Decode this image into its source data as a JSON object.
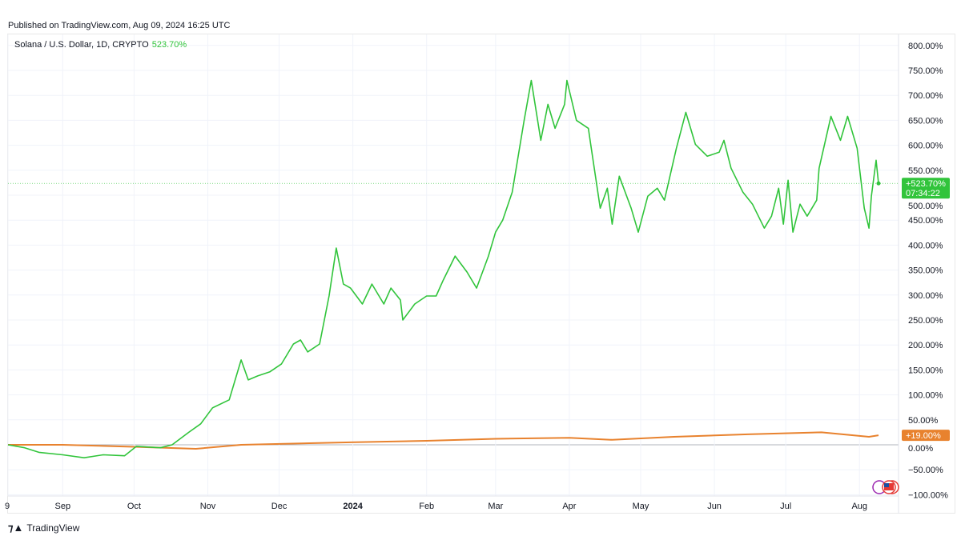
{
  "header": {
    "published": "Published on TradingView.com, Aug 09, 2024 16:25 UTC"
  },
  "legend": {
    "symbol": "Solana / U.S. Dollar, 1D, CRYPTO",
    "value": "523.70%"
  },
  "brand": {
    "name": "TradingView",
    "icon": "tradingview-logo-icon"
  },
  "colors": {
    "solana": "#31c43b",
    "orange": "#e8822e",
    "grid": "#f0f3fa",
    "zero": "#b2b5be"
  },
  "chart_data": {
    "type": "line",
    "ylim": [
      -100,
      800
    ],
    "y_ticks": [
      "800.00%",
      "750.00%",
      "700.00%",
      "650.00%",
      "600.00%",
      "550.00%",
      "500.00%",
      "450.00%",
      "400.00%",
      "350.00%",
      "300.00%",
      "250.00%",
      "200.00%",
      "150.00%",
      "100.00%",
      "50.00%",
      "0.00%",
      "−50.00%",
      "−100.00%"
    ],
    "y_tick_values": [
      800,
      750,
      700,
      650,
      600,
      550,
      500,
      450,
      400,
      350,
      300,
      250,
      200,
      150,
      100,
      50,
      0,
      -50,
      -100
    ],
    "x_range": [
      "2023-08-09",
      "2024-08-09"
    ],
    "x_ticks": [
      {
        "label": "9",
        "date": "2023-08-09"
      },
      {
        "label": "Sep",
        "date": "2023-09-01"
      },
      {
        "label": "Oct",
        "date": "2023-10-01"
      },
      {
        "label": "Nov",
        "date": "2023-11-01"
      },
      {
        "label": "Dec",
        "date": "2023-12-01"
      },
      {
        "label": "2024",
        "date": "2024-01-01",
        "bold": true
      },
      {
        "label": "Feb",
        "date": "2024-02-01"
      },
      {
        "label": "Mar",
        "date": "2024-03-01"
      },
      {
        "label": "Apr",
        "date": "2024-04-01"
      },
      {
        "label": "May",
        "date": "2024-05-01"
      },
      {
        "label": "Jun",
        "date": "2024-06-01"
      },
      {
        "label": "Jul",
        "date": "2024-07-01"
      },
      {
        "label": "Aug",
        "date": "2024-08-01"
      }
    ],
    "grid": true,
    "series": [
      {
        "name": "Solana / U.S. Dollar",
        "color": "#31c43b",
        "last_label": "+523.70%",
        "countdown": "07:34:22",
        "points": [
          [
            "2023-08-09",
            0
          ],
          [
            "2023-08-16",
            -6
          ],
          [
            "2023-08-22",
            -15
          ],
          [
            "2023-09-01",
            -20
          ],
          [
            "2023-09-10",
            -26
          ],
          [
            "2023-09-18",
            -20
          ],
          [
            "2023-09-27",
            -22
          ],
          [
            "2023-10-02",
            -3
          ],
          [
            "2023-10-12",
            -6
          ],
          [
            "2023-10-17",
            0
          ],
          [
            "2023-10-24",
            25
          ],
          [
            "2023-10-29",
            42
          ],
          [
            "2023-11-03",
            74
          ],
          [
            "2023-11-10",
            90
          ],
          [
            "2023-11-15",
            170
          ],
          [
            "2023-11-18",
            130
          ],
          [
            "2023-11-22",
            138
          ],
          [
            "2023-11-27",
            146
          ],
          [
            "2023-12-02",
            162
          ],
          [
            "2023-12-07",
            202
          ],
          [
            "2023-12-10",
            210
          ],
          [
            "2023-12-13",
            186
          ],
          [
            "2023-12-18",
            202
          ],
          [
            "2023-12-22",
            298
          ],
          [
            "2023-12-25",
            394
          ],
          [
            "2023-12-28",
            322
          ],
          [
            "2023-12-31",
            314
          ],
          [
            "2024-01-05",
            282
          ],
          [
            "2024-01-09",
            322
          ],
          [
            "2024-01-14",
            282
          ],
          [
            "2024-01-17",
            314
          ],
          [
            "2024-01-21",
            290
          ],
          [
            "2024-01-22",
            250
          ],
          [
            "2024-01-27",
            282
          ],
          [
            "2024-02-01",
            298
          ],
          [
            "2024-02-05",
            298
          ],
          [
            "2024-02-08",
            330
          ],
          [
            "2024-02-13",
            378
          ],
          [
            "2024-02-18",
            346
          ],
          [
            "2024-02-22",
            314
          ],
          [
            "2024-02-27",
            378
          ],
          [
            "2024-03-01",
            426
          ],
          [
            "2024-03-04",
            450
          ],
          [
            "2024-03-08",
            506
          ],
          [
            "2024-03-13",
            650
          ],
          [
            "2024-03-16",
            730
          ],
          [
            "2024-03-20",
            610
          ],
          [
            "2024-03-23",
            682
          ],
          [
            "2024-03-26",
            634
          ],
          [
            "2024-03-30",
            682
          ],
          [
            "2024-03-31",
            730
          ],
          [
            "2024-04-04",
            650
          ],
          [
            "2024-04-09",
            634
          ],
          [
            "2024-04-10",
            602
          ],
          [
            "2024-04-14",
            474
          ],
          [
            "2024-04-17",
            514
          ],
          [
            "2024-04-19",
            442
          ],
          [
            "2024-04-22",
            538
          ],
          [
            "2024-04-27",
            474
          ],
          [
            "2024-04-30",
            426
          ],
          [
            "2024-05-04",
            498
          ],
          [
            "2024-05-08",
            514
          ],
          [
            "2024-05-11",
            490
          ],
          [
            "2024-05-16",
            594
          ],
          [
            "2024-05-20",
            666
          ],
          [
            "2024-05-24",
            602
          ],
          [
            "2024-05-29",
            578
          ],
          [
            "2024-06-03",
            586
          ],
          [
            "2024-06-05",
            610
          ],
          [
            "2024-06-08",
            554
          ],
          [
            "2024-06-13",
            506
          ],
          [
            "2024-06-17",
            482
          ],
          [
            "2024-06-22",
            434
          ],
          [
            "2024-06-25",
            458
          ],
          [
            "2024-06-28",
            514
          ],
          [
            "2024-06-30",
            442
          ],
          [
            "2024-07-02",
            530
          ],
          [
            "2024-07-04",
            426
          ],
          [
            "2024-07-07",
            482
          ],
          [
            "2024-07-10",
            458
          ],
          [
            "2024-07-14",
            490
          ],
          [
            "2024-07-15",
            554
          ],
          [
            "2024-07-20",
            658
          ],
          [
            "2024-07-24",
            610
          ],
          [
            "2024-07-27",
            658
          ],
          [
            "2024-07-31",
            594
          ],
          [
            "2024-08-03",
            474
          ],
          [
            "2024-08-05",
            434
          ],
          [
            "2024-08-06",
            498
          ],
          [
            "2024-08-08",
            570
          ],
          [
            "2024-08-09",
            523.7
          ]
        ]
      },
      {
        "color": "#e8822e",
        "last_label": "+19.00%",
        "points": [
          [
            "2023-08-09",
            0
          ],
          [
            "2023-09-01",
            0
          ],
          [
            "2023-10-01",
            -4
          ],
          [
            "2023-10-27",
            -8
          ],
          [
            "2023-11-15",
            0
          ],
          [
            "2023-12-31",
            5
          ],
          [
            "2024-02-01",
            8
          ],
          [
            "2024-03-01",
            12
          ],
          [
            "2024-04-01",
            14
          ],
          [
            "2024-04-19",
            10
          ],
          [
            "2024-05-15",
            16
          ],
          [
            "2024-06-15",
            21
          ],
          [
            "2024-07-16",
            25
          ],
          [
            "2024-08-05",
            16
          ],
          [
            "2024-08-09",
            19
          ]
        ]
      }
    ]
  }
}
